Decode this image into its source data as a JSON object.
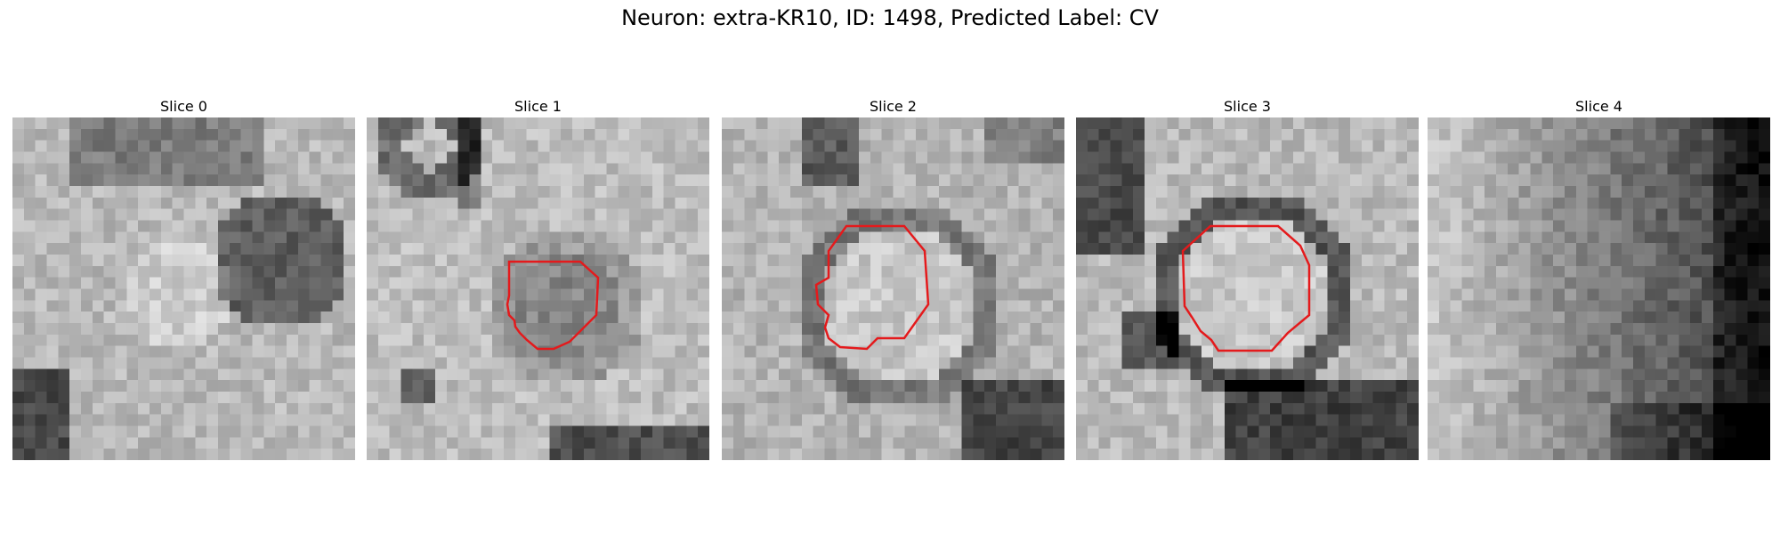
{
  "figure": {
    "title": "Neuron: extra-KR10, ID: 1498, Predicted Label: CV",
    "contour_color": "#e41a1c"
  },
  "panels": [
    {
      "title": "Slice 0",
      "has_contour": false,
      "pattern": "slice0"
    },
    {
      "title": "Slice 1",
      "has_contour": true,
      "pattern": "slice1"
    },
    {
      "title": "Slice 2",
      "has_contour": true,
      "pattern": "slice2"
    },
    {
      "title": "Slice 3",
      "has_contour": true,
      "pattern": "slice3"
    },
    {
      "title": "Slice 4",
      "has_contour": false,
      "pattern": "slice4"
    }
  ]
}
